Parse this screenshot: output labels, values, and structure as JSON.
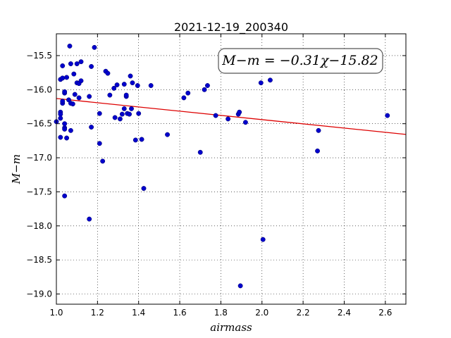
{
  "chart_data": {
    "type": "scatter",
    "title": "2021-12-19_200340",
    "xlabel": "airmass",
    "ylabel": "M−m",
    "xlim": [
      1.0,
      2.7
    ],
    "ylim": [
      -19.15,
      -15.18
    ],
    "x_ticks": [
      1.0,
      1.2,
      1.4,
      1.6,
      1.8,
      2.0,
      2.2,
      2.4,
      2.6
    ],
    "x_tick_labels": [
      "1.0",
      "1.2",
      "1.4",
      "1.6",
      "1.8",
      "2.0",
      "2.2",
      "2.4",
      "2.6"
    ],
    "y_ticks": [
      -15.5,
      -16.0,
      -16.5,
      -17.0,
      -17.5,
      -18.0,
      -18.5,
      -19.0
    ],
    "y_tick_labels": [
      "−15.5",
      "−16.0",
      "−16.5",
      "−17.0",
      "−17.5",
      "−18.0",
      "−18.5",
      "−19.0"
    ],
    "grid": true,
    "annotation": "M−m = −0.31χ−15.82",
    "fit": {
      "slope": -0.31,
      "intercept": -15.82,
      "color": "#dd0000"
    },
    "marker_color": "#0000cc",
    "points": [
      [
        1.0,
        -16.47
      ],
      [
        1.02,
        -16.33
      ],
      [
        1.02,
        -16.36
      ],
      [
        1.02,
        -16.42
      ],
      [
        1.02,
        -16.7
      ],
      [
        1.02,
        -15.85
      ],
      [
        1.03,
        -15.83
      ],
      [
        1.03,
        -16.2
      ],
      [
        1.03,
        -16.17
      ],
      [
        1.03,
        -15.65
      ],
      [
        1.04,
        -16.05
      ],
      [
        1.04,
        -16.03
      ],
      [
        1.04,
        -16.5
      ],
      [
        1.04,
        -16.56
      ],
      [
        1.04,
        -16.58
      ],
      [
        1.04,
        -17.56
      ],
      [
        1.05,
        -15.82
      ],
      [
        1.05,
        -16.71
      ],
      [
        1.06,
        -16.15
      ],
      [
        1.065,
        -15.36
      ],
      [
        1.07,
        -15.62
      ],
      [
        1.07,
        -16.6
      ],
      [
        1.07,
        -16.2
      ],
      [
        1.08,
        -16.21
      ],
      [
        1.085,
        -15.77
      ],
      [
        1.09,
        -16.07
      ],
      [
        1.1,
        -15.9
      ],
      [
        1.1,
        -15.62
      ],
      [
        1.11,
        -15.91
      ],
      [
        1.11,
        -16.12
      ],
      [
        1.12,
        -15.59
      ],
      [
        1.12,
        -15.87
      ],
      [
        1.16,
        -17.9
      ],
      [
        1.16,
        -16.1
      ],
      [
        1.17,
        -15.66
      ],
      [
        1.17,
        -16.55
      ],
      [
        1.185,
        -15.38
      ],
      [
        1.21,
        -16.35
      ],
      [
        1.21,
        -16.79
      ],
      [
        1.225,
        -17.05
      ],
      [
        1.24,
        -15.73
      ],
      [
        1.25,
        -15.76
      ],
      [
        1.26,
        -16.08
      ],
      [
        1.28,
        -15.98
      ],
      [
        1.285,
        -16.41
      ],
      [
        1.295,
        -15.93
      ],
      [
        1.31,
        -16.43
      ],
      [
        1.32,
        -16.36
      ],
      [
        1.33,
        -15.92
      ],
      [
        1.33,
        -16.28
      ],
      [
        1.34,
        -16.1
      ],
      [
        1.345,
        -16.35
      ],
      [
        1.34,
        -16.08
      ],
      [
        1.355,
        -16.36
      ],
      [
        1.36,
        -15.8
      ],
      [
        1.365,
        -16.28
      ],
      [
        1.37,
        -15.9
      ],
      [
        1.385,
        -16.74
      ],
      [
        1.395,
        -15.94
      ],
      [
        1.4,
        -16.35
      ],
      [
        1.415,
        -16.73
      ],
      [
        1.425,
        -17.45
      ],
      [
        1.46,
        -15.94
      ],
      [
        1.54,
        -16.66
      ],
      [
        1.62,
        -16.12
      ],
      [
        1.64,
        -16.05
      ],
      [
        1.7,
        -16.92
      ],
      [
        1.72,
        -16.0
      ],
      [
        1.735,
        -15.94
      ],
      [
        1.775,
        -16.38
      ],
      [
        1.835,
        -16.43
      ],
      [
        1.885,
        -16.36
      ],
      [
        1.89,
        -16.33
      ],
      [
        1.895,
        -18.88
      ],
      [
        1.92,
        -16.48
      ],
      [
        1.995,
        -15.9
      ],
      [
        2.005,
        -18.2
      ],
      [
        2.04,
        -15.86
      ],
      [
        2.27,
        -16.9
      ],
      [
        2.275,
        -16.6
      ],
      [
        2.61,
        -16.38
      ]
    ]
  }
}
